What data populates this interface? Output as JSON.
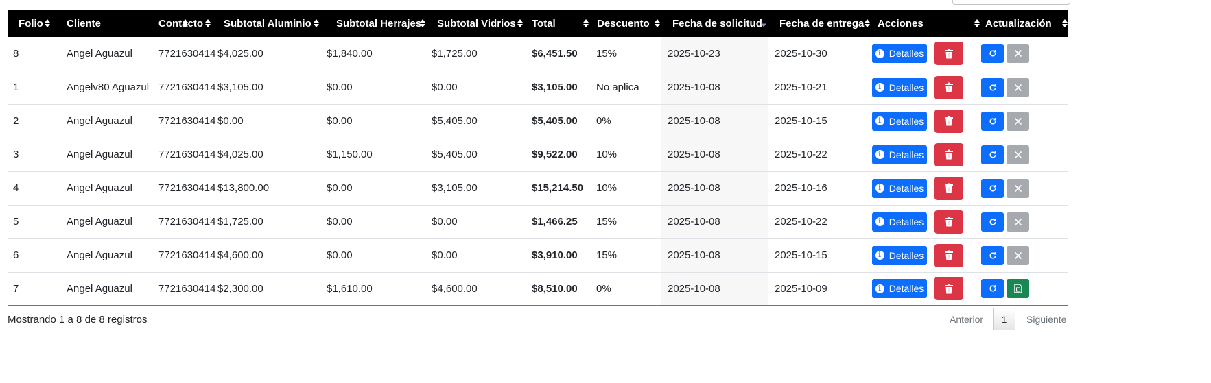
{
  "table": {
    "columns": [
      {
        "key": "folio",
        "label": "Folio",
        "sort": "both"
      },
      {
        "key": "cliente",
        "label": "Cliente",
        "sort": "both"
      },
      {
        "key": "contacto",
        "label": "Contacto",
        "sort": "both"
      },
      {
        "key": "aluminio",
        "label": "Subtotal Aluminio",
        "sort": "both"
      },
      {
        "key": "herrajes",
        "label": "Subtotal Herrajes",
        "sort": "both"
      },
      {
        "key": "vidrios",
        "label": "Subtotal Vidrios",
        "sort": "both"
      },
      {
        "key": "total",
        "label": "Total",
        "sort": "both"
      },
      {
        "key": "descuento",
        "label": "Descuento",
        "sort": "both"
      },
      {
        "key": "fecha_solicitud",
        "label": "Fecha de solicitud",
        "sort": "desc"
      },
      {
        "key": "fecha_entrega",
        "label": "Fecha de entrega",
        "sort": "both"
      },
      {
        "key": "acciones",
        "label": "Acciones",
        "sort": "both"
      },
      {
        "key": "actualizacion",
        "label": "Actualización",
        "sort": "both"
      }
    ],
    "rows": [
      {
        "folio": "8",
        "cliente": "Angel Aguazul",
        "contacto": "7721630414",
        "aluminio": "$4,025.00",
        "herrajes": "$1,840.00",
        "vidrios": "$1,725.00",
        "total": "$6,451.50",
        "descuento": "15%",
        "fecha_solicitud": "2025-10-23",
        "fecha_entrega": "2025-10-30",
        "detalles_label": "Detalles",
        "update_icon": "x-icon"
      },
      {
        "folio": "1",
        "cliente": "Angelv80 Aguazul",
        "contacto": "7721630414",
        "aluminio": "$3,105.00",
        "herrajes": "$0.00",
        "vidrios": "$0.00",
        "total": "$3,105.00",
        "descuento": "No aplica",
        "fecha_solicitud": "2025-10-08",
        "fecha_entrega": "2025-10-21",
        "detalles_label": "Detalles",
        "update_icon": "x-icon"
      },
      {
        "folio": "2",
        "cliente": "Angel Aguazul",
        "contacto": "7721630414",
        "aluminio": "$0.00",
        "herrajes": "$0.00",
        "vidrios": "$5,405.00",
        "total": "$5,405.00",
        "descuento": "0%",
        "fecha_solicitud": "2025-10-08",
        "fecha_entrega": "2025-10-15",
        "detalles_label": "Detalles",
        "update_icon": "x-icon"
      },
      {
        "folio": "3",
        "cliente": "Angel Aguazul",
        "contacto": "7721630414",
        "aluminio": "$4,025.00",
        "herrajes": "$1,150.00",
        "vidrios": "$5,405.00",
        "total": "$9,522.00",
        "descuento": "10%",
        "fecha_solicitud": "2025-10-08",
        "fecha_entrega": "2025-10-22",
        "detalles_label": "Detalles",
        "update_icon": "x-icon"
      },
      {
        "folio": "4",
        "cliente": "Angel Aguazul",
        "contacto": "7721630414",
        "aluminio": "$13,800.00",
        "herrajes": "$0.00",
        "vidrios": "$3,105.00",
        "total": "$15,214.50",
        "descuento": "10%",
        "fecha_solicitud": "2025-10-08",
        "fecha_entrega": "2025-10-16",
        "detalles_label": "Detalles",
        "update_icon": "x-icon"
      },
      {
        "folio": "5",
        "cliente": "Angel Aguazul",
        "contacto": "7721630414",
        "aluminio": "$1,725.00",
        "herrajes": "$0.00",
        "vidrios": "$0.00",
        "total": "$1,466.25",
        "descuento": "15%",
        "fecha_solicitud": "2025-10-08",
        "fecha_entrega": "2025-10-22",
        "detalles_label": "Detalles",
        "update_icon": "x-icon"
      },
      {
        "folio": "6",
        "cliente": "Angel Aguazul",
        "contacto": "7721630414",
        "aluminio": "$4,600.00",
        "herrajes": "$0.00",
        "vidrios": "$0.00",
        "total": "$3,910.00",
        "descuento": "15%",
        "fecha_solicitud": "2025-10-08",
        "fecha_entrega": "2025-10-15",
        "detalles_label": "Detalles",
        "update_icon": "x-icon"
      },
      {
        "folio": "7",
        "cliente": "Angel Aguazul",
        "contacto": "7721630414",
        "aluminio": "$2,300.00",
        "herrajes": "$1,610.00",
        "vidrios": "$4,600.00",
        "total": "$8,510.00",
        "descuento": "0%",
        "fecha_solicitud": "2025-10-08",
        "fecha_entrega": "2025-10-09",
        "detalles_label": "Detalles",
        "update_icon": "excel-file-icon"
      }
    ]
  },
  "footer": {
    "info": "Mostrando 1 a 8 de 8 registros",
    "previous": "Anterior",
    "current_page": "1",
    "next": "Siguiente"
  },
  "colors": {
    "header_bg": "#000000",
    "primary": "#0d6efd",
    "danger": "#dc3545",
    "secondary": "#a6a9ad",
    "success": "#198754"
  }
}
